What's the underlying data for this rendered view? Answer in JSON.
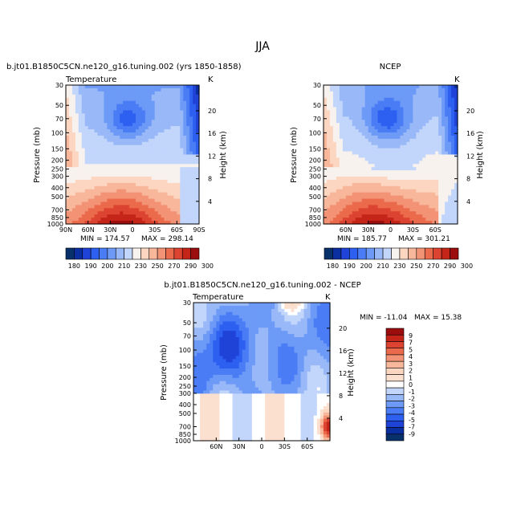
{
  "page_title": "JJA",
  "colors": {
    "temperature_scale": [
      "#08306b",
      "#0b2fa0",
      "#1f43d6",
      "#2d5ff0",
      "#4a7df5",
      "#6d9af7",
      "#98b8f8",
      "#c2d5fb",
      "#f8f2ee",
      "#fcd6c0",
      "#f8b79a",
      "#f39375",
      "#eb6a4c",
      "#dc4330",
      "#c52518",
      "#9c0d0d"
    ],
    "difference_scale": [
      "#08306b",
      "#0b2fa0",
      "#1f43d6",
      "#2d5ff0",
      "#4a7df5",
      "#6d9af7",
      "#98b8f8",
      "#c2d5fb",
      "#ffffff",
      "#fbe0cf",
      "#fcd6c0",
      "#f8b79a",
      "#f39375",
      "#eb6a4c",
      "#dc4330",
      "#c52518",
      "#9c0d0d"
    ]
  },
  "chart_data": [
    {
      "type": "heatmap",
      "title": "b.jt01.B1850C5CN.ne120_g16.tuning.002 (yrs 1850-1858)",
      "subtitle": "Temperature",
      "units": "K",
      "ylabel": "Pressure (mb)",
      "y2label": "Height (km)",
      "pressure_ticks": [
        "30",
        "50",
        "70",
        "100",
        "150",
        "200",
        "250",
        "300",
        "400",
        "500",
        "700",
        "850",
        "1000"
      ],
      "height_ticks": [
        "20",
        "16",
        "12",
        "8",
        "4"
      ],
      "lat_ticks": [
        "90N",
        "60N",
        "30N",
        "0",
        "30S",
        "60S",
        "90S"
      ],
      "min_label": "MIN = 174.57",
      "max_label": "MAX = 298.14",
      "min": 174.57,
      "max": 298.14,
      "legend_labels": [
        "180",
        "190",
        "200",
        "210",
        "230",
        "250",
        "270",
        "290",
        "300"
      ]
    },
    {
      "type": "heatmap",
      "title": "NCEP",
      "subtitle": "",
      "units": "K",
      "ylabel": "Pressure (mb)",
      "y2label": "Height (km)",
      "pressure_ticks": [
        "30",
        "50",
        "70",
        "100",
        "150",
        "200",
        "250",
        "300",
        "400",
        "500",
        "700",
        "850",
        "1000"
      ],
      "height_ticks": [
        "20",
        "16",
        "12",
        "8",
        "4"
      ],
      "lat_ticks": [
        "60N",
        "30N",
        "0",
        "30S",
        "60S"
      ],
      "min_label": "MIN = 185.77",
      "max_label": "MAX = 301.21",
      "min": 185.77,
      "max": 301.21,
      "legend_labels": [
        "180",
        "190",
        "200",
        "210",
        "230",
        "250",
        "270",
        "290",
        "300"
      ]
    },
    {
      "type": "heatmap",
      "title": "b.jt01.B1850C5CN.ne120_g16.tuning.002 - NCEP",
      "subtitle": "Temperature",
      "units": "K",
      "ylabel": "Pressure (mb)",
      "y2label": "Height (km)",
      "pressure_ticks": [
        "30",
        "50",
        "70",
        "100",
        "150",
        "200",
        "250",
        "300",
        "400",
        "500",
        "700",
        "850",
        "1000"
      ],
      "height_ticks": [
        "20",
        "16",
        "12",
        "8",
        "4"
      ],
      "lat_ticks": [
        "60N",
        "30N",
        "0",
        "30S",
        "60S"
      ],
      "min_label": "MIN = -11.04",
      "max_label": "MAX =  15.38",
      "min": -11.04,
      "max": 15.38,
      "legend_labels": [
        "9",
        "7",
        "5",
        "4",
        "3",
        "2",
        "1",
        "0",
        "-1",
        "-2",
        "-3",
        "-4",
        "-5",
        "-7",
        "-9"
      ]
    }
  ]
}
